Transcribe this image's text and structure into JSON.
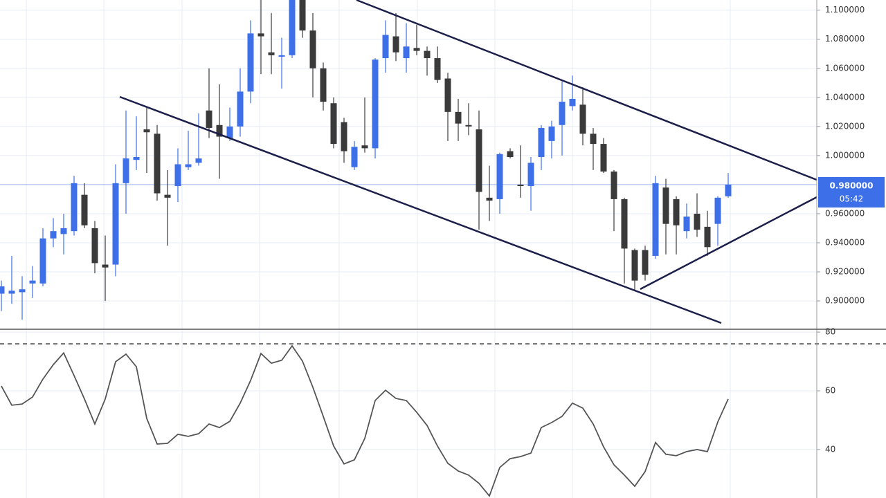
{
  "chart_data": [
    {
      "type": "candlestick",
      "up_color": "#3d6fe8",
      "down_color": "#3a3a3a",
      "open": [
        0.905,
        0.905,
        0.906,
        0.912,
        0.912,
        0.943,
        0.946,
        0.948,
        0.973,
        0.95,
        0.925,
        0.925,
        0.981,
        0.997,
        1.018,
        1.015,
        0.973,
        0.979,
        0.992,
        0.995,
        1.031,
        1.021,
        1.012,
        1.02,
        1.044,
        1.084,
        1.071,
        1.068,
        1.069,
        1.107,
        1.086,
        1.06,
        1.036,
        1.023,
        0.992,
        1.007,
        1.005,
        1.067,
        1.082,
        1.067,
        1.074,
        1.072,
        1.067,
        1.053,
        1.03,
        1.021,
        1.018,
        0.971,
        0.97,
        1.003,
        0.98,
        0.979,
        0.999,
        1.01,
        1.021,
        1.034,
        1.035,
        1.015,
        1.008,
        0.989,
        0.97,
        0.935,
        0.935,
        0.931,
        0.978,
        0.97,
        0.948,
        0.96,
        0.951,
        0.953,
        0.972
      ],
      "high": [
        0.914,
        0.931,
        0.917,
        0.924,
        0.95,
        0.957,
        0.96,
        0.986,
        0.981,
        0.955,
        0.945,
        0.994,
        1.031,
        1.027,
        1.033,
        1.021,
        0.99,
        1.005,
        1.017,
        1.029,
        1.06,
        1.049,
        1.033,
        1.06,
        1.093,
        1.107,
        1.098,
        1.081,
        1.107,
        1.107,
        1.098,
        1.064,
        1.04,
        1.026,
        1.01,
        1.04,
        1.067,
        1.093,
        1.098,
        1.091,
        1.09,
        1.075,
        1.075,
        1.057,
        1.039,
        1.036,
        1.031,
        0.993,
        1.002,
        1.005,
        1.007,
        0.999,
        1.021,
        1.024,
        1.051,
        1.055,
        1.047,
        1.019,
        1.012,
        0.99,
        0.971,
        0.936,
        0.938,
        0.986,
        0.984,
        0.972,
        0.967,
        0.974,
        0.962,
        0.972,
        0.988
      ],
      "low": [
        0.893,
        0.898,
        0.887,
        0.902,
        0.91,
        0.937,
        0.932,
        0.945,
        0.95,
        0.919,
        0.9,
        0.917,
        0.96,
        0.99,
        0.988,
        0.969,
        0.938,
        0.968,
        0.99,
        0.993,
        1.012,
        0.984,
        1.01,
        1.013,
        1.036,
        1.056,
        1.056,
        1.046,
        1.067,
        1.081,
        1.04,
        1.031,
        1.005,
        0.995,
        0.99,
        1.002,
        0.998,
        1.057,
        1.065,
        1.057,
        1.069,
        1.055,
        1.05,
        1.01,
        1.01,
        1.014,
        0.949,
        0.955,
        0.96,
        0.998,
        0.971,
        0.962,
        0.99,
        0.998,
        1.0,
        1.031,
        1.007,
        0.99,
        0.988,
        0.948,
        0.912,
        0.907,
        0.914,
        0.929,
        0.932,
        0.932,
        0.943,
        0.944,
        0.931,
        0.938,
        0.971
      ],
      "close": [
        0.91,
        0.907,
        0.908,
        0.914,
        0.943,
        0.948,
        0.95,
        0.981,
        0.952,
        0.926,
        0.923,
        0.981,
        0.998,
        0.999,
        1.016,
        0.974,
        0.971,
        0.994,
        0.994,
        0.998,
        1.019,
        1.013,
        1.02,
        1.044,
        1.084,
        1.082,
        1.069,
        1.069,
        1.107,
        1.086,
        1.06,
        1.037,
        1.008,
        1.003,
        1.006,
        1.005,
        1.066,
        1.083,
        1.071,
        1.075,
        1.072,
        1.067,
        1.052,
        1.03,
        1.022,
        1.02,
        0.975,
        0.969,
        1.001,
        0.999,
        0.979,
        0.995,
        1.019,
        1.02,
        1.037,
        1.039,
        1.015,
        1.008,
        0.989,
        0.97,
        0.936,
        0.914,
        0.918,
        0.981,
        0.953,
        0.952,
        0.958,
        0.949,
        0.937,
        0.971,
        0.98
      ],
      "ylim": [
        0.881,
        1.107
      ],
      "yticks": [
        {
          "value": 1.1,
          "label": "1.100000"
        },
        {
          "value": 1.08,
          "label": "1.080000"
        },
        {
          "value": 1.06,
          "label": "1.060000"
        },
        {
          "value": 1.04,
          "label": "1.040000"
        },
        {
          "value": 1.02,
          "label": "1.020000"
        },
        {
          "value": 1.0,
          "label": "1.000000"
        },
        {
          "value": 0.96,
          "label": "0.960000"
        },
        {
          "value": 0.94,
          "label": "0.940000"
        },
        {
          "value": 0.92,
          "label": "0.920000"
        },
        {
          "value": 0.9,
          "label": "0.900000"
        }
      ],
      "price_line": {
        "value": 0.98,
        "label": "0.980000",
        "color": "#3d6fe8"
      },
      "countdown": "05:42",
      "grid": true
    },
    {
      "type": "line",
      "color": "#555555",
      "values": [
        61.6,
        55.1,
        55.5,
        57.9,
        64.0,
        68.9,
        72.9,
        65.2,
        57.2,
        48.7,
        57.2,
        69.9,
        72.5,
        68.2,
        50.6,
        41.9,
        42.1,
        45.2,
        44.5,
        45.4,
        48.7,
        47.5,
        49.6,
        55.8,
        63.5,
        72.7,
        69.4,
        70.4,
        75.3,
        70.1,
        61.2,
        51.3,
        41.2,
        35.1,
        36.5,
        43.8,
        56.7,
        60.2,
        57.4,
        56.7,
        52.7,
        48.2,
        41.2,
        35.3,
        32.7,
        31.3,
        28.5,
        24.2,
        33.9,
        36.9,
        37.6,
        38.8,
        47.5,
        49.2,
        51.3,
        55.8,
        54.1,
        48.7,
        40.9,
        34.8,
        31.3,
        27.5,
        32.5,
        42.4,
        38.4,
        37.9,
        39.3,
        40.0,
        39.3,
        49.4,
        57.2
      ],
      "ylim": [
        23.5,
        80.5
      ],
      "yticks": [
        80,
        60,
        40
      ],
      "level": 76,
      "grid": true
    }
  ]
}
